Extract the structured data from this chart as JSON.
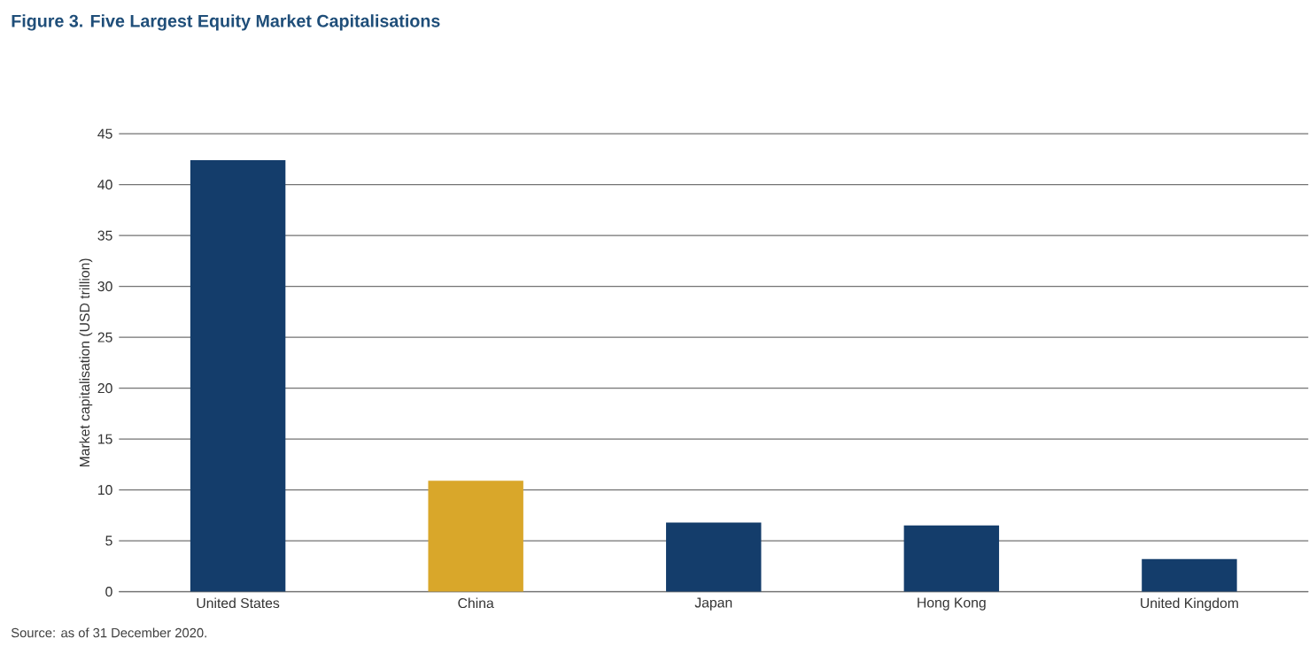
{
  "chart_data": {
    "type": "bar",
    "title": "Figure 3. Five Largest Equity Market Capitalisations",
    "ylabel": "Market capitalisation (USD trillion)",
    "categories": [
      "United States",
      "China",
      "Japan",
      "Hong Kong",
      "United Kingdom"
    ],
    "values": [
      42.4,
      10.9,
      6.8,
      6.5,
      3.2
    ],
    "colors": [
      "#143d6b",
      "#d9a72a",
      "#143d6b",
      "#143d6b",
      "#143d6b"
    ],
    "ylim": [
      0,
      45
    ],
    "yticks": [
      0,
      5,
      10,
      15,
      20,
      25,
      30,
      35,
      40,
      45
    ],
    "grid": "y",
    "annotations": [
      "Source: as of 31 December 2020."
    ]
  }
}
